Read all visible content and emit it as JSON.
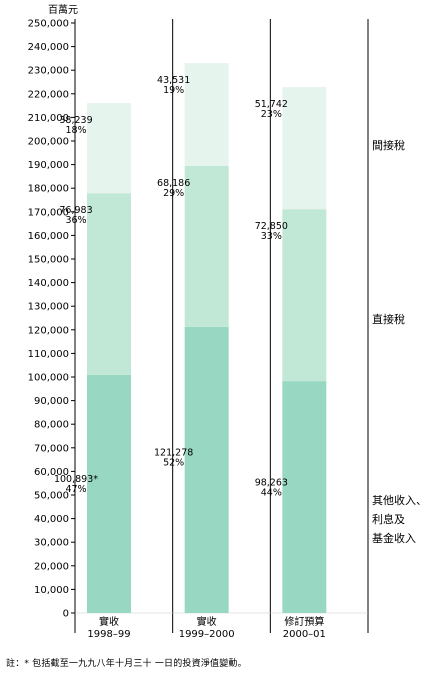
{
  "unit_label": "百萬元",
  "footnote": "註：* 包括截至一九九八年十月三十 一日的投資淨值變動。",
  "legend": {
    "indirect": "間接稅",
    "direct": "直接稅",
    "other": [
      "其他收入、",
      "利息及",
      "基金收入"
    ]
  },
  "colors": {
    "indirect": "#e5f5ee",
    "direct": "#c1e7d7",
    "other": "#98d8c2",
    "grid": "#000000"
  },
  "chart_data": {
    "type": "bar",
    "stacked": true,
    "ylim": [
      0,
      250000
    ],
    "ytick_step": 10000,
    "categories": [
      [
        "實收",
        "1998–99"
      ],
      [
        "實收",
        "1999–2000"
      ],
      [
        "修訂預算",
        "2000–01"
      ]
    ],
    "series": [
      {
        "name": "其他收入、利息及基金收入",
        "key": "other",
        "values": [
          100893,
          121278,
          98263
        ],
        "labels": [
          "100,893*",
          "121,278",
          "98,263"
        ],
        "percents": [
          "47%",
          "52%",
          "44%"
        ]
      },
      {
        "name": "直接稅",
        "key": "direct",
        "values": [
          76983,
          68186,
          72850
        ],
        "labels": [
          "76,983",
          "68,186",
          "72,850"
        ],
        "percents": [
          "36%",
          "29%",
          "33%"
        ]
      },
      {
        "name": "間接稅",
        "key": "indirect",
        "values": [
          38239,
          43531,
          51742
        ],
        "labels": [
          "38,239",
          "43,531",
          "51,742"
        ],
        "percents": [
          "18%",
          "19%",
          "23%"
        ]
      }
    ]
  }
}
